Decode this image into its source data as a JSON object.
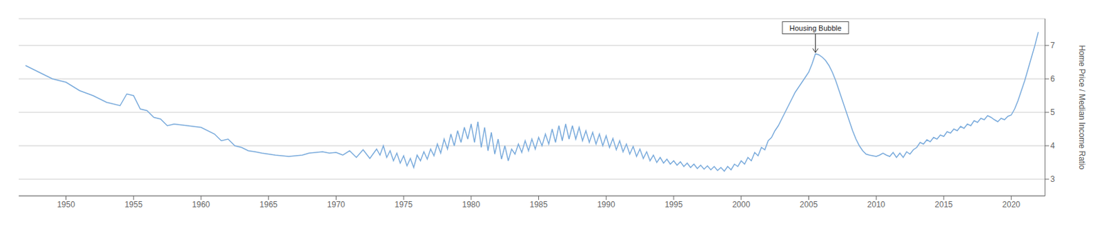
{
  "chart_data": {
    "type": "line",
    "y_label": "Home Price / Median Income Ratio",
    "color": "#7aabdc",
    "grid": "y",
    "xlim": [
      1946.5,
      2022.5
    ],
    "xticks": [
      1950,
      1955,
      1960,
      1965,
      1970,
      1975,
      1980,
      1985,
      1990,
      1995,
      2000,
      2005,
      2010,
      2015,
      2020
    ],
    "ylim": [
      2.5,
      7.8
    ],
    "yticks": [
      3,
      4,
      5,
      6,
      7
    ],
    "annotations": [
      {
        "text": "Housing Bubble",
        "x": 2005.5,
        "y": 6.75
      }
    ],
    "x": [
      1947.0,
      1948.0,
      1949.0,
      1950.0,
      1951.0,
      1952.0,
      1953.0,
      1954.0,
      1954.5,
      1955.0,
      1955.5,
      1956.0,
      1956.5,
      1957.0,
      1957.5,
      1958.0,
      1959.0,
      1960.0,
      1961.0,
      1961.5,
      1962.0,
      1962.5,
      1963.0,
      1963.5,
      1964.0,
      1964.5,
      1965.0,
      1965.5,
      1966.0,
      1966.5,
      1967.0,
      1967.5,
      1968.0,
      1968.5,
      1969.0,
      1969.5,
      1970.0,
      1970.5,
      1971.0,
      1971.5,
      1972.0,
      1972.5,
      1973.0,
      1973.25,
      1973.5,
      1973.75,
      1974.0,
      1974.25,
      1974.5,
      1974.75,
      1975.0,
      1975.25,
      1975.5,
      1975.75,
      1976.0,
      1976.25,
      1976.5,
      1976.75,
      1977.0,
      1977.25,
      1977.5,
      1977.75,
      1978.0,
      1978.25,
      1978.5,
      1978.75,
      1979.0,
      1979.25,
      1979.5,
      1979.75,
      1980.0,
      1980.25,
      1980.5,
      1980.75,
      1981.0,
      1981.25,
      1981.5,
      1981.75,
      1982.0,
      1982.25,
      1982.5,
      1982.75,
      1983.0,
      1983.25,
      1983.5,
      1983.75,
      1984.0,
      1984.25,
      1984.5,
      1984.75,
      1985.0,
      1985.25,
      1985.5,
      1985.75,
      1986.0,
      1986.25,
      1986.5,
      1986.75,
      1987.0,
      1987.25,
      1987.5,
      1987.75,
      1988.0,
      1988.25,
      1988.5,
      1988.75,
      1989.0,
      1989.25,
      1989.5,
      1989.75,
      1990.0,
      1990.25,
      1990.5,
      1990.75,
      1991.0,
      1991.25,
      1991.5,
      1991.75,
      1992.0,
      1992.25,
      1992.5,
      1992.75,
      1993.0,
      1993.25,
      1993.5,
      1993.75,
      1994.0,
      1994.25,
      1994.5,
      1994.75,
      1995.0,
      1995.25,
      1995.5,
      1995.75,
      1996.0,
      1996.25,
      1996.5,
      1996.75,
      1997.0,
      1997.25,
      1997.5,
      1997.75,
      1998.0,
      1998.25,
      1998.5,
      1998.75,
      1999.0,
      1999.25,
      1999.5,
      1999.75,
      2000.0,
      2000.25,
      2000.5,
      2000.75,
      2001.0,
      2001.25,
      2001.5,
      2001.75,
      2002.0,
      2002.25,
      2002.5,
      2002.75,
      2003.0,
      2003.25,
      2003.5,
      2003.75,
      2004.0,
      2004.25,
      2004.5,
      2004.75,
      2005.0,
      2005.25,
      2005.5,
      2005.75,
      2006.0,
      2006.25,
      2006.5,
      2006.75,
      2007.0,
      2007.25,
      2007.5,
      2007.75,
      2008.0,
      2008.25,
      2008.5,
      2008.75,
      2009.0,
      2009.25,
      2009.5,
      2009.75,
      2010.0,
      2010.25,
      2010.5,
      2010.75,
      2011.0,
      2011.25,
      2011.5,
      2011.75,
      2012.0,
      2012.25,
      2012.5,
      2012.75,
      2013.0,
      2013.25,
      2013.5,
      2013.75,
      2014.0,
      2014.25,
      2014.5,
      2014.75,
      2015.0,
      2015.25,
      2015.5,
      2015.75,
      2016.0,
      2016.25,
      2016.5,
      2016.75,
      2017.0,
      2017.25,
      2017.5,
      2017.75,
      2018.0,
      2018.25,
      2018.5,
      2018.75,
      2019.0,
      2019.25,
      2019.5,
      2019.75,
      2020.0,
      2020.25,
      2020.5,
      2020.75,
      2021.0,
      2021.25,
      2021.5,
      2021.75,
      2022.0
    ],
    "values": [
      6.4,
      6.2,
      6.0,
      5.9,
      5.65,
      5.5,
      5.3,
      5.2,
      5.55,
      5.5,
      5.1,
      5.05,
      4.85,
      4.8,
      4.6,
      4.65,
      4.6,
      4.55,
      4.35,
      4.15,
      4.2,
      4.0,
      3.95,
      3.85,
      3.82,
      3.78,
      3.75,
      3.72,
      3.7,
      3.68,
      3.7,
      3.72,
      3.78,
      3.8,
      3.82,
      3.78,
      3.8,
      3.72,
      3.85,
      3.65,
      3.88,
      3.62,
      3.9,
      3.72,
      4.0,
      3.65,
      3.85,
      3.55,
      3.78,
      3.48,
      3.7,
      3.4,
      3.62,
      3.35,
      3.72,
      3.55,
      3.82,
      3.6,
      3.9,
      3.7,
      4.05,
      3.78,
      4.2,
      3.9,
      4.35,
      4.0,
      4.45,
      4.1,
      4.55,
      4.2,
      4.65,
      4.1,
      4.72,
      3.95,
      4.55,
      3.85,
      4.4,
      3.75,
      4.2,
      3.6,
      4.0,
      3.55,
      3.9,
      3.75,
      4.05,
      3.8,
      4.15,
      3.85,
      4.2,
      3.9,
      4.25,
      4.0,
      4.35,
      4.05,
      4.5,
      4.1,
      4.6,
      4.15,
      4.65,
      4.2,
      4.6,
      4.2,
      4.55,
      4.15,
      4.45,
      4.1,
      4.4,
      4.05,
      4.35,
      4.0,
      4.3,
      3.95,
      4.22,
      3.88,
      4.15,
      3.82,
      4.05,
      3.75,
      3.98,
      3.68,
      3.9,
      3.62,
      3.82,
      3.55,
      3.72,
      3.5,
      3.65,
      3.48,
      3.6,
      3.45,
      3.55,
      3.42,
      3.52,
      3.38,
      3.48,
      3.35,
      3.45,
      3.32,
      3.42,
      3.3,
      3.4,
      3.28,
      3.38,
      3.26,
      3.35,
      3.24,
      3.38,
      3.28,
      3.45,
      3.38,
      3.55,
      3.45,
      3.65,
      3.55,
      3.8,
      3.7,
      3.95,
      3.88,
      4.15,
      4.25,
      4.45,
      4.6,
      4.8,
      5.0,
      5.2,
      5.4,
      5.6,
      5.75,
      5.9,
      6.05,
      6.2,
      6.45,
      6.75,
      6.72,
      6.65,
      6.55,
      6.4,
      6.2,
      5.95,
      5.65,
      5.35,
      5.05,
      4.75,
      4.45,
      4.2,
      4.0,
      3.85,
      3.75,
      3.72,
      3.7,
      3.68,
      3.72,
      3.78,
      3.72,
      3.68,
      3.8,
      3.65,
      3.78,
      3.65,
      3.82,
      3.75,
      3.88,
      3.95,
      4.1,
      4.05,
      4.18,
      4.12,
      4.25,
      4.2,
      4.32,
      4.28,
      4.42,
      4.38,
      4.5,
      4.45,
      4.58,
      4.52,
      4.65,
      4.6,
      4.75,
      4.7,
      4.82,
      4.78,
      4.9,
      4.85,
      4.78,
      4.72,
      4.82,
      4.78,
      4.88,
      4.92,
      5.1,
      5.35,
      5.65,
      5.95,
      6.3,
      6.65,
      7.0,
      7.4
    ]
  }
}
